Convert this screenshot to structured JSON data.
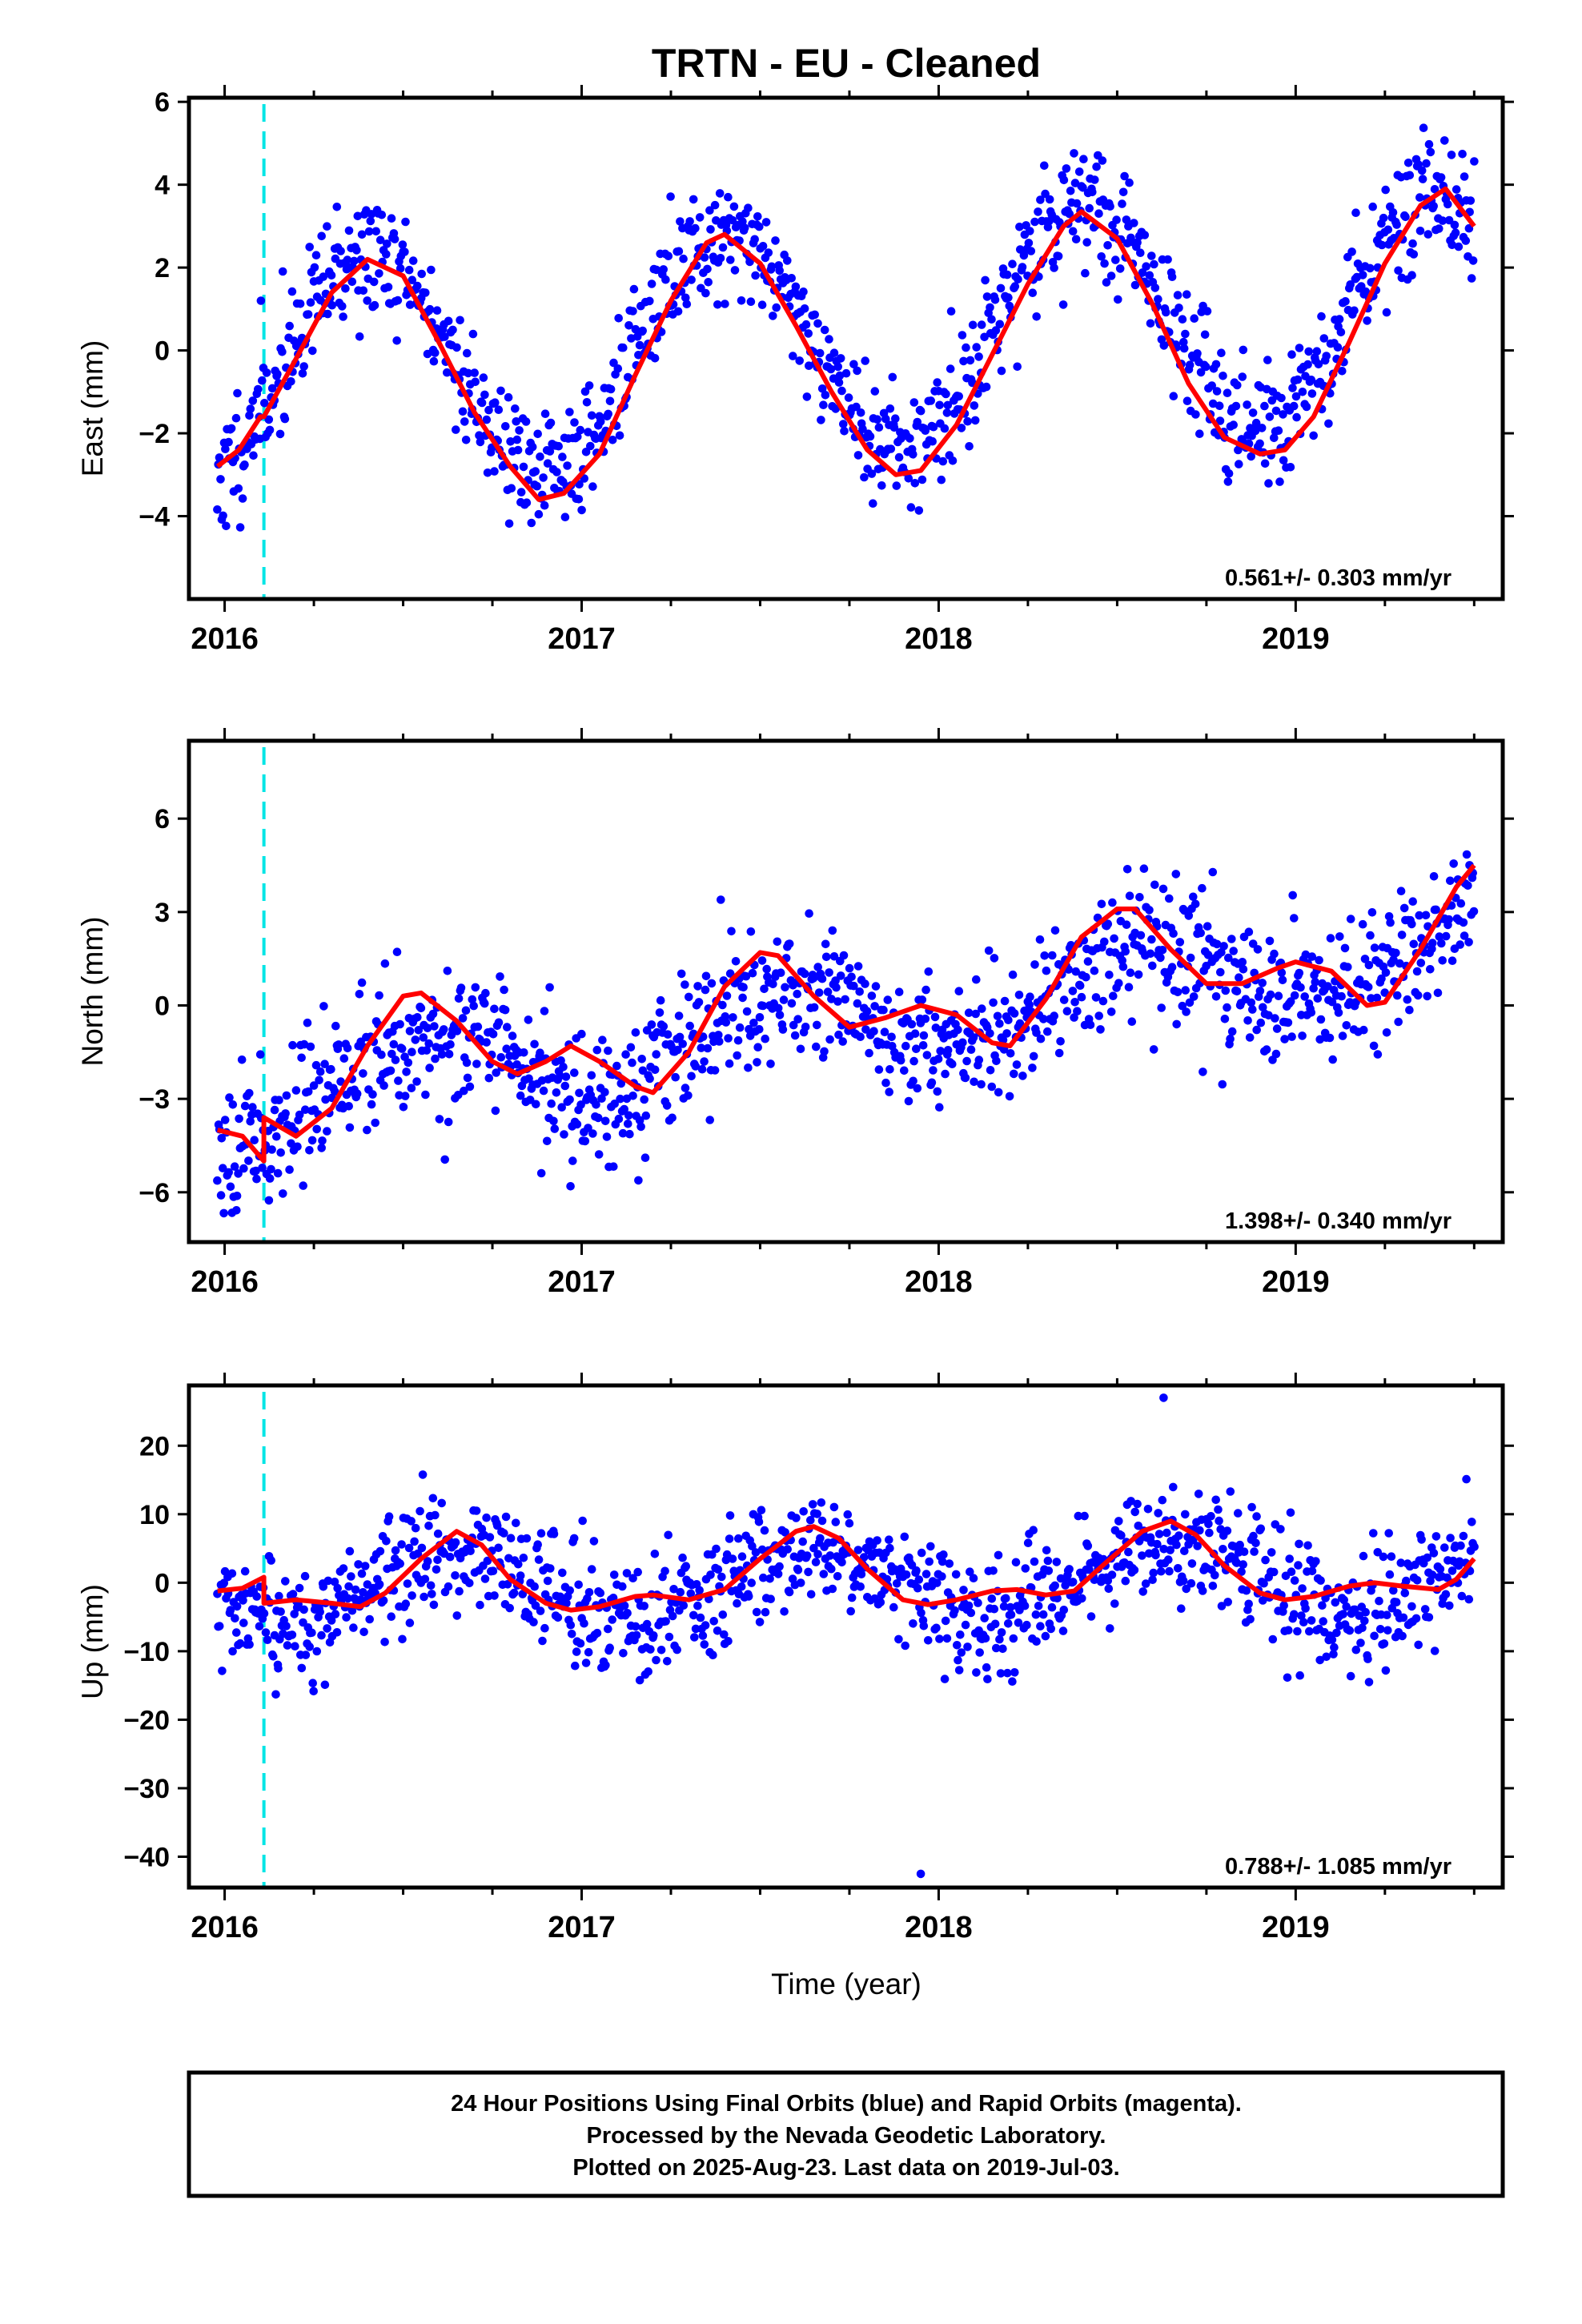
{
  "chart_data": [
    {
      "type": "scatter",
      "title": "TRTN  - EU - Cleaned",
      "ylabel": "East (mm)",
      "xlabel": "",
      "xlim": [
        2015.9,
        2019.58
      ],
      "ylim": [
        -6.0,
        6.1
      ],
      "yticks": [
        -4,
        -2,
        0,
        2,
        4,
        6
      ],
      "xticks": [
        2016,
        2017,
        2018,
        2019
      ],
      "rate_label": "0.561+/- 0.303 mm/yr",
      "vertical_marker": {
        "x": 2016.11,
        "color": "#00e5e5"
      },
      "series": [
        {
          "name": "Final Orbits",
          "color": "#0000ff",
          "generator": {
            "x_start": 2015.98,
            "x_end": 2019.5,
            "n": 1150,
            "amp": 2.75,
            "peak": 2016.4,
            "trend": 0.561,
            "offset": -0.7,
            "noise": 0.75,
            "seed": 11
          }
        },
        {
          "name": "model",
          "color": "#ff0000",
          "points": [
            [
              2015.98,
              -2.8
            ],
            [
              2016.04,
              -2.4
            ],
            [
              2016.1,
              -1.6
            ],
            [
              2016.11,
              -1.6
            ],
            [
              2016.2,
              -0.2
            ],
            [
              2016.3,
              1.4
            ],
            [
              2016.4,
              2.2
            ],
            [
              2016.5,
              1.8
            ],
            [
              2016.6,
              0.2
            ],
            [
              2016.7,
              -1.5
            ],
            [
              2016.8,
              -2.8
            ],
            [
              2016.88,
              -3.6
            ],
            [
              2016.95,
              -3.45
            ],
            [
              2017.05,
              -2.5
            ],
            [
              2017.15,
              -0.6
            ],
            [
              2017.25,
              1.2
            ],
            [
              2017.35,
              2.6
            ],
            [
              2017.4,
              2.8
            ],
            [
              2017.5,
              2.1
            ],
            [
              2017.6,
              0.6
            ],
            [
              2017.7,
              -1.0
            ],
            [
              2017.8,
              -2.4
            ],
            [
              2017.88,
              -3.0
            ],
            [
              2017.95,
              -2.9
            ],
            [
              2018.05,
              -1.8
            ],
            [
              2018.15,
              -0.1
            ],
            [
              2018.25,
              1.6
            ],
            [
              2018.35,
              3.0
            ],
            [
              2018.4,
              3.35
            ],
            [
              2018.5,
              2.7
            ],
            [
              2018.6,
              1.1
            ],
            [
              2018.7,
              -0.8
            ],
            [
              2018.8,
              -2.1
            ],
            [
              2018.9,
              -2.5
            ],
            [
              2018.97,
              -2.4
            ],
            [
              2019.05,
              -1.6
            ],
            [
              2019.15,
              0.2
            ],
            [
              2019.25,
              2.1
            ],
            [
              2019.35,
              3.5
            ],
            [
              2019.42,
              3.9
            ],
            [
              2019.5,
              3.0
            ]
          ]
        }
      ]
    },
    {
      "type": "scatter",
      "title": "",
      "ylabel": "North (mm)",
      "xlabel": "",
      "xlim": [
        2015.9,
        2019.58
      ],
      "ylim": [
        -7.6,
        8.5
      ],
      "yticks": [
        -6,
        -3,
        0,
        3,
        6
      ],
      "xticks": [
        2016,
        2017,
        2018,
        2019
      ],
      "rate_label": "1.398+/- 0.340 mm/yr",
      "vertical_marker": {
        "x": 2016.11,
        "color": "#00e5e5"
      },
      "series": [
        {
          "name": "Final Orbits",
          "color": "#0000ff",
          "generator": {
            "x_start": 2015.98,
            "x_end": 2019.5,
            "n": 1150,
            "amp": 1.3,
            "peak": 2016.55,
            "trend": 1.4,
            "offset": -3.0,
            "noise": 1.1,
            "seed": 23
          }
        },
        {
          "name": "model",
          "color": "#ff0000",
          "points": [
            [
              2015.98,
              -4.0
            ],
            [
              2016.05,
              -4.2
            ],
            [
              2016.11,
              -5.0
            ],
            [
              2016.11,
              -3.6
            ],
            [
              2016.2,
              -4.2
            ],
            [
              2016.3,
              -3.3
            ],
            [
              2016.4,
              -1.3
            ],
            [
              2016.5,
              0.3
            ],
            [
              2016.55,
              0.4
            ],
            [
              2016.65,
              -0.5
            ],
            [
              2016.75,
              -1.8
            ],
            [
              2016.82,
              -2.2
            ],
            [
              2016.9,
              -1.8
            ],
            [
              2016.97,
              -1.3
            ],
            [
              2017.05,
              -1.8
            ],
            [
              2017.15,
              -2.6
            ],
            [
              2017.2,
              -2.8
            ],
            [
              2017.3,
              -1.5
            ],
            [
              2017.4,
              0.6
            ],
            [
              2017.5,
              1.7
            ],
            [
              2017.55,
              1.6
            ],
            [
              2017.65,
              0.3
            ],
            [
              2017.75,
              -0.7
            ],
            [
              2017.85,
              -0.4
            ],
            [
              2017.95,
              0.0
            ],
            [
              2018.05,
              -0.3
            ],
            [
              2018.15,
              -1.2
            ],
            [
              2018.2,
              -1.3
            ],
            [
              2018.3,
              0.2
            ],
            [
              2018.4,
              2.2
            ],
            [
              2018.5,
              3.1
            ],
            [
              2018.55,
              3.1
            ],
            [
              2018.65,
              1.8
            ],
            [
              2018.75,
              0.7
            ],
            [
              2018.85,
              0.7
            ],
            [
              2018.95,
              1.2
            ],
            [
              2019.0,
              1.4
            ],
            [
              2019.1,
              1.1
            ],
            [
              2019.2,
              0.0
            ],
            [
              2019.25,
              0.1
            ],
            [
              2019.35,
              1.8
            ],
            [
              2019.45,
              3.8
            ],
            [
              2019.5,
              4.5
            ]
          ]
        }
      ]
    },
    {
      "type": "scatter",
      "title": "",
      "ylabel": "Up (mm)",
      "xlabel": "Time (year)",
      "xlim": [
        2015.9,
        2019.58
      ],
      "ylim": [
        -44.5,
        28.8
      ],
      "yticks": [
        -40,
        -30,
        -20,
        -10,
        0,
        10,
        20
      ],
      "xticks": [
        2016,
        2017,
        2018,
        2019
      ],
      "rate_label": "0.788+/- 1.085 mm/yr",
      "vertical_marker": {
        "x": 2016.11,
        "color": "#00e5e5"
      },
      "series": [
        {
          "name": "Final Orbits",
          "color": "#0000ff",
          "generator": {
            "x_start": 2015.98,
            "x_end": 2019.5,
            "n": 1150,
            "amp": 5.0,
            "peak": 2016.65,
            "trend": 0.788,
            "offset": -1.5,
            "noise": 4.2,
            "seed": 37
          },
          "extra_points": [
            [
              2017.95,
              -42.5
            ],
            [
              2018.63,
              27.0
            ],
            [
              2016.15,
              -12.5
            ]
          ]
        },
        {
          "name": "model",
          "color": "#ff0000",
          "points": [
            [
              2015.98,
              -1.2
            ],
            [
              2016.05,
              -0.8
            ],
            [
              2016.11,
              0.8
            ],
            [
              2016.11,
              -3.0
            ],
            [
              2016.2,
              -2.5
            ],
            [
              2016.3,
              -3.0
            ],
            [
              2016.38,
              -3.5
            ],
            [
              2016.45,
              -1.5
            ],
            [
              2016.55,
              3.5
            ],
            [
              2016.65,
              7.5
            ],
            [
              2016.72,
              5.5
            ],
            [
              2016.8,
              0.5
            ],
            [
              2016.9,
              -3.0
            ],
            [
              2016.97,
              -4.0
            ],
            [
              2017.05,
              -3.5
            ],
            [
              2017.15,
              -2.0
            ],
            [
              2017.2,
              -1.8
            ],
            [
              2017.3,
              -2.5
            ],
            [
              2017.4,
              -1.0
            ],
            [
              2017.5,
              3.5
            ],
            [
              2017.6,
              7.5
            ],
            [
              2017.65,
              8.2
            ],
            [
              2017.72,
              6.5
            ],
            [
              2017.8,
              2.0
            ],
            [
              2017.9,
              -2.5
            ],
            [
              2017.97,
              -3.2
            ],
            [
              2018.05,
              -2.5
            ],
            [
              2018.15,
              -1.2
            ],
            [
              2018.22,
              -1.0
            ],
            [
              2018.3,
              -1.8
            ],
            [
              2018.38,
              -1.2
            ],
            [
              2018.47,
              3.0
            ],
            [
              2018.57,
              7.5
            ],
            [
              2018.65,
              9.0
            ],
            [
              2018.72,
              7.0
            ],
            [
              2018.8,
              2.5
            ],
            [
              2018.9,
              -1.5
            ],
            [
              2018.97,
              -2.5
            ],
            [
              2019.05,
              -2.0
            ],
            [
              2019.15,
              -0.5
            ],
            [
              2019.22,
              0.0
            ],
            [
              2019.3,
              -0.5
            ],
            [
              2019.4,
              -1.0
            ],
            [
              2019.45,
              0.5
            ],
            [
              2019.5,
              3.5
            ]
          ]
        }
      ]
    }
  ],
  "footer": {
    "line1": "24 Hour Positions Using Final Orbits (blue) and Rapid Orbits (magenta).",
    "line2": "Processed by the Nevada Geodetic Laboratory.",
    "line3": "Plotted on 2025-Aug-23. Last data on 2019-Jul-03."
  }
}
